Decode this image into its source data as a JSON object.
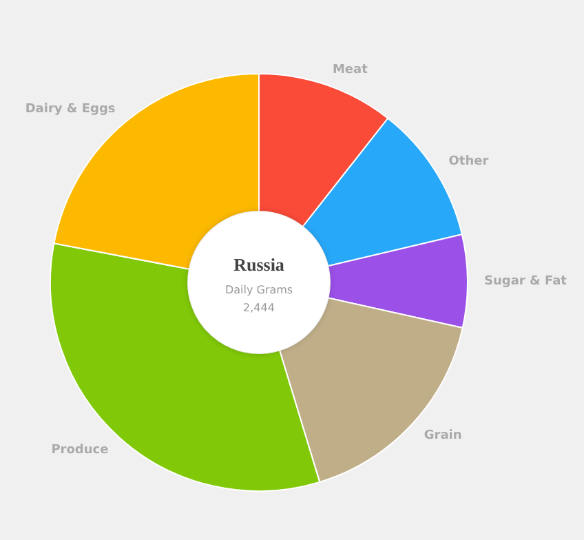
{
  "chart_data": {
    "type": "donut",
    "title": "Russia",
    "subtitle": "Daily Grams",
    "annotations": [
      "2,444"
    ],
    "categories": [
      "Meat",
      "Other",
      "Sugar & Fat",
      "Grain",
      "Produce",
      "Dairy & Eggs"
    ],
    "values": [
      10.6,
      10.7,
      7.2,
      16.8,
      32.7,
      22.0
    ],
    "colors": [
      "#fa4a38",
      "#28a8f8",
      "#9b50e8",
      "#bfae88",
      "#80c808",
      "#fdb900"
    ],
    "legend": false
  }
}
